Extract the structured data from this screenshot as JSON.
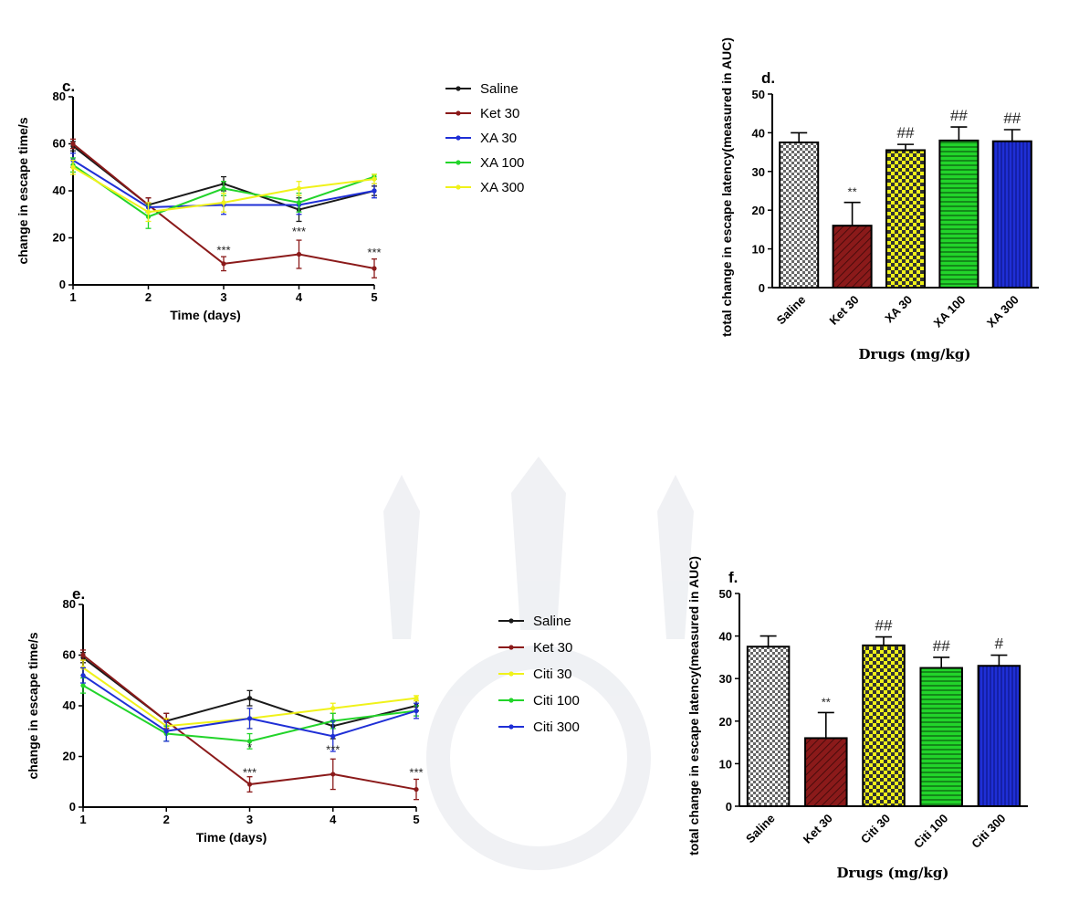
{
  "colors": {
    "Saline": "#1a1a1a",
    "Ket 30": "#8b1a1a",
    "XA 30": "#1f2fd6",
    "XA 100": "#22d42a",
    "XA 300": "#f0f21a",
    "Citi 30": "#f0f21a",
    "Citi 100": "#22d42a",
    "Citi 300": "#1f2fd6",
    "watermark": "#eef0f3"
  },
  "chart_data": [
    {
      "id": "c",
      "type": "line",
      "panel_label": "c.",
      "xlabel": "Time (days)",
      "ylabel": "change in escape time/s",
      "x": [
        1,
        2,
        3,
        4,
        5
      ],
      "xticks": [
        "1",
        "2",
        "3",
        "4",
        "5"
      ],
      "ylim": [
        0,
        80
      ],
      "yticks": [
        "0",
        "20",
        "40",
        "60",
        "80"
      ],
      "legend_position": "right",
      "series": [
        {
          "name": "Saline",
          "values": [
            59,
            34,
            43,
            32,
            40
          ],
          "err": [
            2,
            3,
            3,
            5,
            2
          ]
        },
        {
          "name": "Ket 30",
          "values": [
            60,
            34,
            9,
            13,
            7
          ],
          "err": [
            2,
            3,
            3,
            6,
            4
          ]
        },
        {
          "name": " XA 30",
          "values": [
            53,
            33,
            34,
            34,
            40
          ],
          "err": [
            3,
            2,
            4,
            4,
            3
          ]
        },
        {
          "name": "XA 100",
          "values": [
            51,
            29,
            41,
            35,
            46
          ],
          "err": [
            3,
            5,
            3,
            4,
            1
          ]
        },
        {
          "name": "XA 300",
          "values": [
            50,
            31,
            35,
            41,
            45
          ],
          "err": [
            3,
            4,
            4,
            3,
            2
          ]
        }
      ],
      "annotations": [
        {
          "x": 3,
          "y": 13,
          "text": "***"
        },
        {
          "x": 4,
          "y": 21,
          "text": "***"
        },
        {
          "x": 5,
          "y": 12,
          "text": "***"
        }
      ]
    },
    {
      "id": "d",
      "type": "bar",
      "panel_label": "d.",
      "xlabel": "Drugs (mg/kg)",
      "ylabel": "total change in escape latency(measured in AUC)",
      "categories": [
        "Saline",
        "Ket 30",
        "XA 30",
        "XA 100",
        "XA 300"
      ],
      "values": [
        37.5,
        16,
        35.5,
        38,
        37.8
      ],
      "err": [
        2.5,
        6,
        1.5,
        3.5,
        3
      ],
      "ylim": [
        0,
        50
      ],
      "yticks": [
        "0",
        "10",
        "20",
        "30",
        "40",
        "50"
      ],
      "annotations": [
        "",
        "**",
        "##",
        "##",
        "##"
      ]
    },
    {
      "id": "e",
      "type": "line",
      "panel_label": "e.",
      "xlabel": "Time (days)",
      "ylabel": "change in escape time/s",
      "x": [
        1,
        2,
        3,
        4,
        5
      ],
      "xticks": [
        "1",
        "2",
        "3",
        "4",
        "5"
      ],
      "ylim": [
        0,
        80
      ],
      "yticks": [
        "0",
        "20",
        "40",
        "60",
        "80"
      ],
      "legend_position": "right",
      "series": [
        {
          "name": "Saline",
          "values": [
            59,
            34,
            43,
            32,
            40
          ],
          "err": [
            2,
            3,
            3,
            5,
            2
          ]
        },
        {
          "name": "Ket 30",
          "values": [
            60,
            34,
            9,
            13,
            7
          ],
          "err": [
            2,
            3,
            3,
            6,
            4
          ]
        },
        {
          "name": "Citi 30",
          "values": [
            55,
            32,
            35,
            39,
            43
          ],
          "err": [
            3,
            3,
            4,
            2,
            1
          ]
        },
        {
          "name": "Citi 100",
          "values": [
            48,
            29,
            26,
            34,
            38
          ],
          "err": [
            3,
            3,
            3,
            3,
            2
          ]
        },
        {
          "name": "Citi 300",
          "values": [
            52,
            30,
            35,
            28,
            38
          ],
          "err": [
            3,
            4,
            4,
            6,
            3
          ]
        }
      ],
      "annotations": [
        {
          "x": 3,
          "y": 22,
          "text": "*"
        },
        {
          "x": 3,
          "y": 12,
          "text": "***"
        },
        {
          "x": 4,
          "y": 21,
          "text": "***"
        },
        {
          "x": 5,
          "y": 12,
          "text": "***"
        }
      ]
    },
    {
      "id": "f",
      "type": "bar",
      "panel_label": "f.",
      "xlabel": "Drugs (mg/kg)",
      "ylabel": "total change in escape latency(measured in AUC)",
      "categories": [
        "Saline",
        "Ket 30",
        "Citi 30",
        "Citi 100",
        "Citi 300"
      ],
      "values": [
        37.5,
        16,
        37.8,
        32.5,
        33
      ],
      "err": [
        2.5,
        6,
        2,
        2.5,
        2.5
      ],
      "ylim": [
        0,
        50
      ],
      "yticks": [
        "0",
        "10",
        "20",
        "30",
        "40",
        "50"
      ],
      "annotations": [
        "",
        "**",
        "##",
        "##",
        "#"
      ]
    }
  ]
}
